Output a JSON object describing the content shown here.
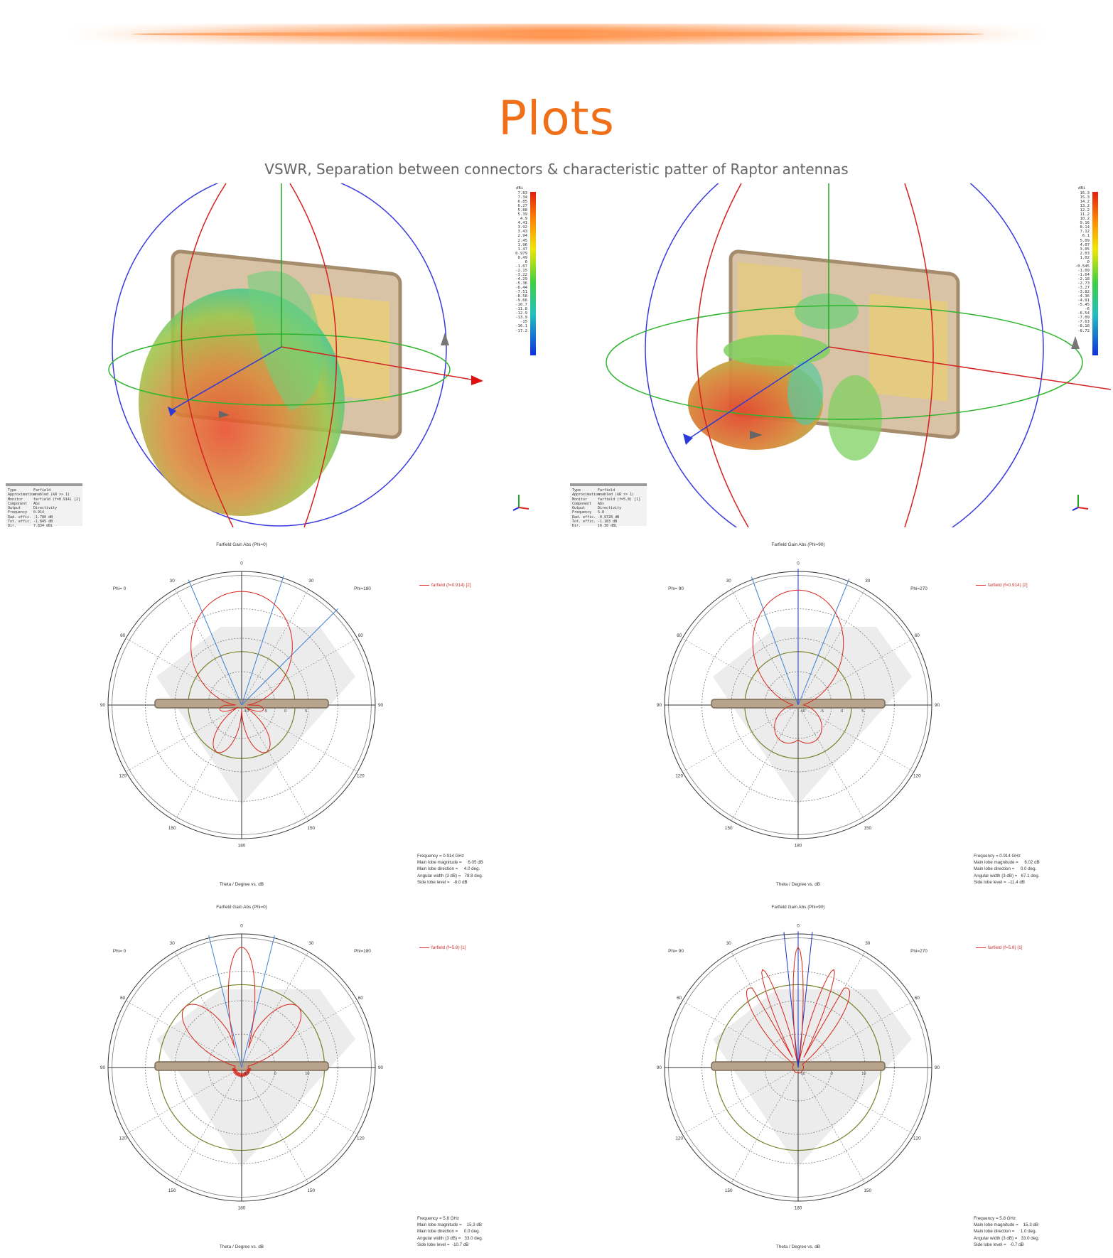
{
  "header": {
    "title": "Plots",
    "subtitle": "VSWR, Separation between connectors & characteristic patter of Raptor antennas"
  },
  "colors": {
    "accent": "#f07019",
    "pattern": "#d9261c",
    "beam": "#3d7fd9",
    "ring": "#7a7f2a"
  },
  "farfield_3d": [
    {
      "legend_unit": "dBi",
      "legend_ticks": [
        "7.83",
        "7.34",
        "6.85",
        "6.27",
        "5.88",
        "5.39",
        "4.9",
        "4.41",
        "3.92",
        "3.43",
        "2.94",
        "2.45",
        "1.96",
        "1.47",
        "0.979",
        "0.49",
        "0",
        "-1.07",
        "-2.15",
        "-3.22",
        "-4.29",
        "-5.36",
        "-6.44",
        "-7.51",
        "-8.58",
        "-9.66",
        "-10.7",
        "-11.8",
        "-12.9",
        "-13.9",
        "-15",
        "-16.1",
        "-17.2"
      ],
      "info": [
        [
          "Type",
          "Farfield"
        ],
        [
          "Approximation",
          "enabled (kR >> 1)"
        ],
        [
          "Monitor",
          "farfield (f=0.914) [2]"
        ],
        [
          "Component",
          "Abs"
        ],
        [
          "Output",
          "Directivity"
        ],
        [
          "Frequency",
          "0.914"
        ],
        [
          "Rad. effic.",
          "-1.780 dB"
        ],
        [
          "Tot. effic.",
          "-1.845 dB"
        ],
        [
          "Dir.",
          "7.834 dBi"
        ]
      ]
    },
    {
      "legend_unit": "dBi",
      "legend_ticks": [
        "16.3",
        "15.3",
        "14.2",
        "13.2",
        "12.2",
        "11.2",
        "10.2",
        "9.16",
        "8.14",
        "7.12",
        "6.1",
        "5.09",
        "4.07",
        "3.05",
        "2.03",
        "1.02",
        "0",
        "-0.545",
        "-1.09",
        "-1.64",
        "-2.18",
        "-2.73",
        "-3.27",
        "-3.82",
        "-4.36",
        "-4.91",
        "-5.45",
        "-6",
        "-6.54",
        "-7.09",
        "-7.63",
        "-8.18",
        "-8.72"
      ],
      "info": [
        [
          "Type",
          "Farfield"
        ],
        [
          "Approximation",
          "enabled (kR >> 1)"
        ],
        [
          "Monitor",
          "farfield (f=5.8) [1]"
        ],
        [
          "Component",
          "Abs"
        ],
        [
          "Output",
          "Directivity"
        ],
        [
          "Frequency",
          "5.8"
        ],
        [
          "Rad. effic.",
          "-0.9728 dB"
        ],
        [
          "Tot. effic.",
          "-1.183 dB"
        ],
        [
          "Dir.",
          "16.30 dBi"
        ]
      ]
    }
  ],
  "polar_plots": [
    {
      "title": "Farfield Gain Abs (Phi=0)",
      "phi_left": "Phi=  0",
      "phi_right": "Phi=180",
      "series": "farfield (f=0.914) [2]",
      "xlabel": "Theta / Degree vs. dB",
      "ring_labels": [
        "-10",
        "-5",
        "0",
        "5"
      ],
      "angle_labels": [
        "0",
        "30",
        "30",
        "60",
        "60",
        "90",
        "90",
        "120",
        "120",
        "150",
        "150",
        "180"
      ],
      "stats": [
        "Frequency = 0.914 GHz",
        "Main lobe magnitude =     6.05 dB",
        "Main lobe direction =     4.0 deg.",
        "Angular width (3 dB) =   78.8 deg.",
        "Side lobe level =   -8.0 dB"
      ]
    },
    {
      "title": "Farfield Gain Abs (Phi=90)",
      "phi_left": "Phi= 90",
      "phi_right": "Phi=270",
      "series": "farfield (f=0.914) [2]",
      "xlabel": "Theta / Degree vs. dB",
      "ring_labels": [
        "-10",
        "-5",
        "0",
        "5"
      ],
      "angle_labels": [
        "0",
        "30",
        "30",
        "60",
        "60",
        "90",
        "90",
        "120",
        "120",
        "150",
        "150",
        "180"
      ],
      "stats": [
        "Frequency = 0.914 GHz",
        "Main lobe magnitude =     6.02 dB",
        "Main lobe direction =     0.0 deg.",
        "Angular width (3 dB) =   67.1 deg.",
        "Side lobe level =  -11.4 dB"
      ]
    },
    {
      "title": "Farfield Gain Abs (Phi=0)",
      "phi_left": "Phi=  0",
      "phi_right": "Phi=180",
      "series": "farfield (f=5.8) [1]",
      "xlabel": "Theta / Degree vs. dB",
      "ring_labels": [
        "-10",
        "0",
        "10"
      ],
      "angle_labels": [
        "0",
        "30",
        "30",
        "60",
        "60",
        "90",
        "90",
        "120",
        "120",
        "150",
        "150",
        "180"
      ],
      "stats": [
        "Frequency = 5.8 GHz",
        "Main lobe magnitude =    15.3 dB",
        "Main lobe direction =     0.0 deg.",
        "Angular width (3 dB) =   33.0 deg.",
        "Side lobe level =  -10.7 dB"
      ]
    },
    {
      "title": "Farfield Gain Abs (Phi=90)",
      "phi_left": "Phi= 90",
      "phi_right": "Phi=270",
      "series": "farfield (f=5.8) [1]",
      "xlabel": "Theta / Degree vs. dB",
      "ring_labels": [
        "-10",
        "0",
        "10"
      ],
      "angle_labels": [
        "0",
        "30",
        "30",
        "60",
        "60",
        "90",
        "90",
        "120",
        "120",
        "150",
        "150",
        "180"
      ],
      "stats": [
        "Frequency = 5.8 GHz",
        "Main lobe magnitude =    15.3 dB",
        "Main lobe direction =     1.0 deg.",
        "Angular width (3 dB) =   33.0 deg.",
        "Side lobe level =   -0.7 dB"
      ]
    }
  ]
}
